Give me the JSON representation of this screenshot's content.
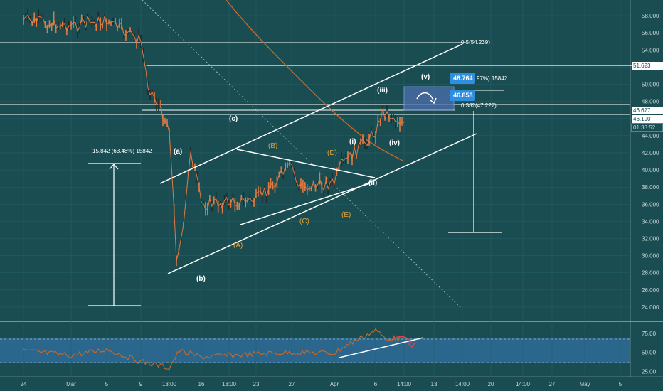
{
  "chart_data": [
    {
      "type": "line",
      "title": "",
      "x": [
        "24",
        "Mar",
        "5",
        "9",
        "13:00",
        "16",
        "13:00",
        "23",
        "27",
        "Apr",
        "6",
        "14:00",
        "13",
        "14:00",
        "20",
        "14:00",
        "27",
        "May",
        "5"
      ],
      "ylim": [
        23000,
        59000
      ],
      "y_ticks": [
        "24.000",
        "26.000",
        "28.000",
        "30.000",
        "32.000",
        "34.000",
        "36.000",
        "38.000",
        "40.000",
        "42.000",
        "44.000",
        "46.000",
        "48.000",
        "50.000",
        "52.000",
        "54.000",
        "56.000",
        "58.000"
      ],
      "series": [
        {
          "values": [
            {
              "x": "24",
              "y": 57500
            },
            {
              "x": "Mar",
              "y": 56800
            },
            {
              "x": "5",
              "y": 57400
            },
            {
              "x": "9",
              "y": 55000
            },
            {
              "x": "9",
              "y": 50000
            },
            {
              "x": "13:00",
              "y": 45000
            },
            {
              "x": "13:00",
              "y": 30000
            },
            {
              "x": "16",
              "y": 36000
            },
            {
              "x": "13:00",
              "y": 33000
            },
            {
              "x": "13:00",
              "y": 42500
            },
            {
              "x": "23",
              "y": 36500
            },
            {
              "x": "27",
              "y": 40500
            },
            {
              "x": "27",
              "y": 38000
            },
            {
              "x": "Apr",
              "y": 38500
            },
            {
              "x": "Apr",
              "y": 40500
            },
            {
              "x": "6",
              "y": 44500
            },
            {
              "x": "6",
              "y": 46800
            },
            {
              "x": "14:00",
              "y": 45500
            }
          ]
        }
      ],
      "price_labels": [
        "58.000",
        "51.623",
        "46.677",
        "46.190",
        "01:33:52"
      ],
      "ma_color": "#c8692a",
      "candle_color": "#e07b43",
      "wave_labels": {
        "white": [
          "(a)",
          "(b)",
          "(c)",
          "(i)",
          "(ii)",
          "(iii)",
          "(iv)",
          "(v)"
        ],
        "orange": [
          "(A)",
          "(B)",
          "(C)",
          "(D)",
          "(E)"
        ]
      },
      "fib_labels": [
        "0.5(54.239)",
        "0.382(47.227)"
      ],
      "measure_label": "15.842 (63.48%) 15842",
      "badges": {
        "upper": "48.764",
        "upper_note": "97%) 15842",
        "lower": "46.858",
        "color": "#2e8ee0"
      }
    },
    {
      "type": "line",
      "title": "",
      "ylim": [
        20,
        85
      ],
      "y_ticks": [
        "25.00",
        "50.00",
        "75.00"
      ],
      "series": [
        {
          "values": [
            {
              "x": "24",
              "y": 52
            },
            {
              "x": "Mar",
              "y": 46
            },
            {
              "x": "5",
              "y": 54
            },
            {
              "x": "9",
              "y": 38
            },
            {
              "x": "13:00",
              "y": 30
            },
            {
              "x": "16",
              "y": 44
            },
            {
              "x": "13:00",
              "y": 52
            },
            {
              "x": "23",
              "y": 48
            },
            {
              "x": "27",
              "y": 50
            },
            {
              "x": "Apr",
              "y": 49
            },
            {
              "x": "Apr",
              "y": 58
            },
            {
              "x": "6",
              "y": 79
            },
            {
              "x": "6",
              "y": 68
            },
            {
              "x": "14:00",
              "y": 68
            }
          ]
        }
      ],
      "band_color": "#2f6c96",
      "line_color": "#c8692a"
    }
  ]
}
